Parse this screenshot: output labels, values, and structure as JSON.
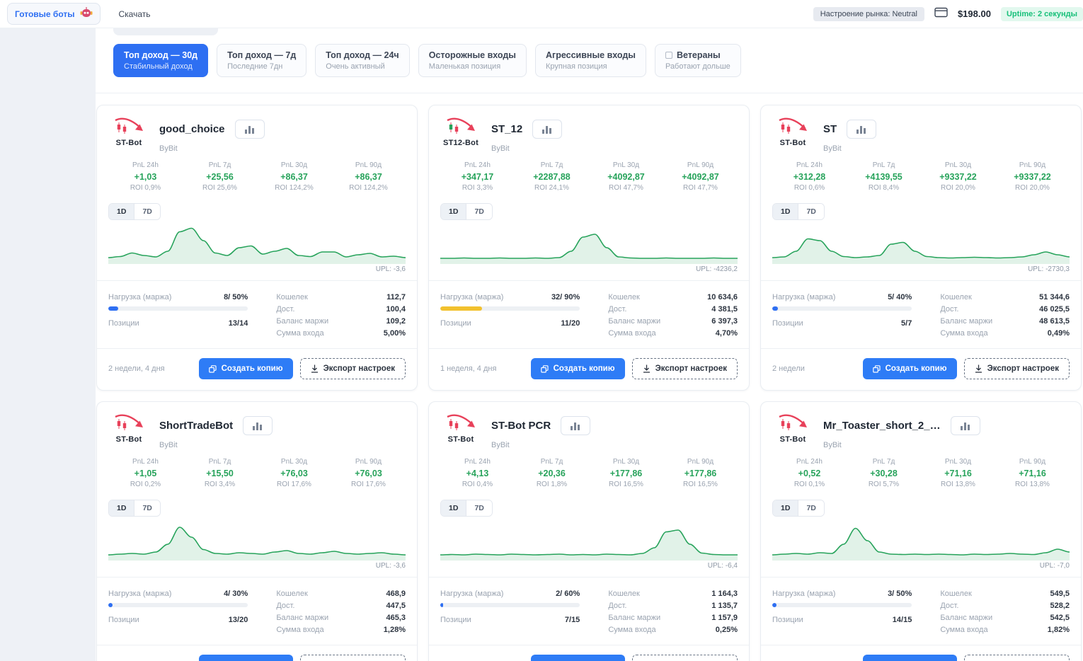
{
  "topbar": {
    "ready_bots_label": "Готовые боты",
    "download_label": "Скачать",
    "market_mood": "Настроение рынка: Neutral",
    "balance": "$198.00",
    "uptime": "Uptime: 2 секунды"
  },
  "filters": [
    {
      "title": "Топ доход — 30д",
      "subtitle": "Стабильный доход",
      "active": true,
      "checkbox": false
    },
    {
      "title": "Топ доход — 7д",
      "subtitle": "Последние 7дн",
      "active": false,
      "checkbox": false
    },
    {
      "title": "Топ доход — 24ч",
      "subtitle": "Очень активный",
      "active": false,
      "checkbox": false
    },
    {
      "title": "Осторожные входы",
      "subtitle": "Маленькая позиция",
      "active": false,
      "checkbox": false
    },
    {
      "title": "Агрессивные входы",
      "subtitle": "Крупная позиция",
      "active": false,
      "checkbox": false
    },
    {
      "title": "Ветераны",
      "subtitle": "Работают дольше",
      "active": false,
      "checkbox": true
    }
  ],
  "labels": {
    "d1": "1D",
    "d7": "7D",
    "upl": "UPL:",
    "load": "Нагрузка (маржа)",
    "positions": "Позиции",
    "wallet": "Кошелек",
    "avail": "Дост.",
    "margin_balance": "Баланс маржи",
    "entry_sum": "Сумма входа",
    "copy": "Создать копию",
    "export": "Экспорт настроек"
  },
  "accent_colors": {
    "blue": "#2e6ff2",
    "green": "#27a35b",
    "yellow": "#f2c12e"
  },
  "cards": [
    {
      "name": "good_choice",
      "exchange": "ByBit",
      "logo": "ST-Bot",
      "logo_variant": "st",
      "pnl": [
        {
          "label": "PnL 24h",
          "value": "+1,03",
          "roi": "ROI 0,9%"
        },
        {
          "label": "PnL 7д",
          "value": "+25,56",
          "roi": "ROI 25,6%"
        },
        {
          "label": "PnL 30д",
          "value": "+86,37",
          "roi": "ROI 124,2%"
        },
        {
          "label": "PnL 90д",
          "value": "+86,37",
          "roi": "ROI 124,2%"
        }
      ],
      "upl": "-3,6",
      "load_value": "8/ 50%",
      "load_fill": 7,
      "load_color": "#2e6ff2",
      "positions": "13/14",
      "wallet": "112,7",
      "avail": "100,4",
      "margin_balance": "109,2",
      "entry": "5,00%",
      "age": "2 недели, 4 дня",
      "spark": [
        12,
        15,
        25,
        18,
        14,
        30,
        85,
        95,
        60,
        25,
        18,
        40,
        45,
        22,
        30,
        38,
        18,
        15,
        28,
        28,
        14,
        20,
        24,
        14,
        16,
        12
      ]
    },
    {
      "name": "ST_12",
      "exchange": "ByBit",
      "logo": "ST12-Bot",
      "logo_variant": "st12",
      "pnl": [
        {
          "label": "PnL 24h",
          "value": "+347,17",
          "roi": "ROI 3,3%"
        },
        {
          "label": "PnL 7д",
          "value": "+2287,88",
          "roi": "ROI 24,1%"
        },
        {
          "label": "PnL 30д",
          "value": "+4092,87",
          "roi": "ROI 47,7%"
        },
        {
          "label": "PnL 90д",
          "value": "+4092,87",
          "roi": "ROI 47,7%"
        }
      ],
      "upl": "-4236,2",
      "load_value": "32/ 90%",
      "load_fill": 30,
      "load_color": "#f2c12e",
      "positions": "11/20",
      "wallet": "10 634,6",
      "avail": "4 381,5",
      "margin_balance": "6 397,3",
      "entry": "4,70%",
      "age": "1 неделя, 4 дня",
      "spark": [
        10,
        10,
        11,
        10,
        10,
        11,
        10,
        10,
        11,
        10,
        12,
        30,
        70,
        78,
        40,
        14,
        11,
        10,
        10,
        11,
        10,
        10,
        10,
        11,
        10,
        10
      ]
    },
    {
      "name": "ST",
      "exchange": "ByBit",
      "logo": "ST-Bot",
      "logo_variant": "st",
      "pnl": [
        {
          "label": "PnL 24h",
          "value": "+312,28",
          "roi": "ROI 0,6%"
        },
        {
          "label": "PnL 7д",
          "value": "+4139,55",
          "roi": "ROI 8,4%"
        },
        {
          "label": "PnL 30д",
          "value": "+9337,22",
          "roi": "ROI 20,0%"
        },
        {
          "label": "PnL 90д",
          "value": "+9337,22",
          "roi": "ROI 20,0%"
        }
      ],
      "upl": "-2730,3",
      "load_value": "5/ 40%",
      "load_fill": 4,
      "load_color": "#2e6ff2",
      "positions": "5/7",
      "wallet": "51 344,6",
      "avail": "46 025,5",
      "margin_balance": "48 613,5",
      "entry": "0,49%",
      "age": "2 недели",
      "spark": [
        12,
        14,
        30,
        65,
        60,
        30,
        15,
        12,
        14,
        18,
        50,
        55,
        30,
        15,
        12,
        11,
        12,
        13,
        12,
        11,
        12,
        14,
        20,
        28,
        20,
        14
      ]
    },
    {
      "name": "ShortTradeBot",
      "exchange": "ByBit",
      "logo": "ST-Bot",
      "logo_variant": "st",
      "pnl": [
        {
          "label": "PnL 24h",
          "value": "+1,05",
          "roi": "ROI 0,2%"
        },
        {
          "label": "PnL 7д",
          "value": "+15,50",
          "roi": "ROI 3,4%"
        },
        {
          "label": "PnL 30д",
          "value": "+76,03",
          "roi": "ROI 17,6%"
        },
        {
          "label": "PnL 90д",
          "value": "+76,03",
          "roi": "ROI 17,6%"
        }
      ],
      "upl": "-3,6",
      "load_value": "4/ 30%",
      "load_fill": 3,
      "load_color": "#2e6ff2",
      "positions": "13/20",
      "wallet": "468,9",
      "avail": "447,5",
      "margin_balance": "465,3",
      "entry": "1,28%",
      "age": null,
      "spark": [
        10,
        12,
        14,
        12,
        18,
        40,
        88,
        60,
        25,
        14,
        12,
        16,
        14,
        12,
        18,
        22,
        14,
        12,
        16,
        20,
        14,
        12,
        14,
        16,
        12,
        10
      ]
    },
    {
      "name": "ST-Bot PCR",
      "exchange": "ByBit",
      "logo": "ST-Bot",
      "logo_variant": "st",
      "pnl": [
        {
          "label": "PnL 24h",
          "value": "+4,13",
          "roi": "ROI 0,4%"
        },
        {
          "label": "PnL 7д",
          "value": "+20,36",
          "roi": "ROI 1,8%"
        },
        {
          "label": "PnL 30д",
          "value": "+177,86",
          "roi": "ROI 16,5%"
        },
        {
          "label": "PnL 90д",
          "value": "+177,86",
          "roi": "ROI 16,5%"
        }
      ],
      "upl": "-6,4",
      "load_value": "2/ 60%",
      "load_fill": 2,
      "load_color": "#2e6ff2",
      "positions": "7/15",
      "wallet": "1 164,3",
      "avail": "1 135,7",
      "margin_balance": "1 157,9",
      "entry": "0,25%",
      "age": null,
      "spark": [
        10,
        11,
        10,
        12,
        11,
        10,
        12,
        11,
        10,
        11,
        12,
        10,
        11,
        10,
        12,
        11,
        10,
        14,
        30,
        75,
        80,
        40,
        15,
        11,
        10,
        10
      ]
    },
    {
      "name": "Mr_Toaster_short_2_…",
      "exchange": "ByBit",
      "logo": "ST-Bot",
      "logo_variant": "st",
      "pnl": [
        {
          "label": "PnL 24h",
          "value": "+0,52",
          "roi": "ROI 0,1%"
        },
        {
          "label": "PnL 7д",
          "value": "+30,28",
          "roi": "ROI 5,7%"
        },
        {
          "label": "PnL 30д",
          "value": "+71,16",
          "roi": "ROI 13,8%"
        },
        {
          "label": "PnL 90д",
          "value": "+71,16",
          "roi": "ROI 13,8%"
        }
      ],
      "upl": "-7,0",
      "load_value": "3/ 50%",
      "load_fill": 3,
      "load_color": "#2e6ff2",
      "positions": "14/15",
      "wallet": "549,5",
      "avail": "528,2",
      "margin_balance": "542,5",
      "entry": "1,82%",
      "age": null,
      "spark": [
        10,
        12,
        14,
        12,
        16,
        14,
        40,
        85,
        50,
        18,
        12,
        11,
        12,
        11,
        12,
        11,
        10,
        12,
        11,
        12,
        14,
        12,
        11,
        16,
        26,
        18
      ]
    }
  ]
}
